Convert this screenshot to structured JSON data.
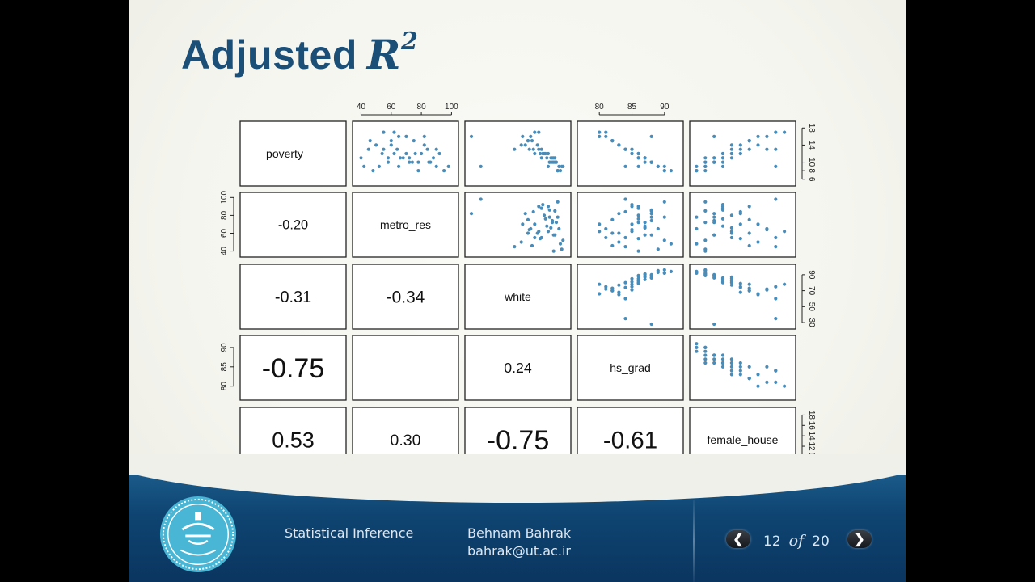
{
  "slide": {
    "title": "Adjusted",
    "title_math": "R",
    "title_exp": "2"
  },
  "chart_data": {
    "type": "scatter-matrix",
    "variables": [
      "poverty",
      "metro_res",
      "white",
      "hs_grad",
      "female_house"
    ],
    "correlations": [
      {
        "row": "metro_res",
        "col": "poverty",
        "value": "-0.20"
      },
      {
        "row": "white",
        "col": "poverty",
        "value": "-0.31"
      },
      {
        "row": "white",
        "col": "metro_res",
        "value": "-0.34"
      },
      {
        "row": "hs_grad",
        "col": "poverty",
        "value": "-0.75"
      },
      {
        "row": "hs_grad",
        "col": "metro_res",
        "value": ""
      },
      {
        "row": "hs_grad",
        "col": "white",
        "value": "0.24"
      },
      {
        "row": "female_house",
        "col": "poverty",
        "value": "0.53"
      },
      {
        "row": "female_house",
        "col": "metro_res",
        "value": "0.30"
      },
      {
        "row": "female_house",
        "col": "white",
        "value": "-0.75"
      },
      {
        "row": "female_house",
        "col": "hs_grad",
        "value": "-0.61"
      }
    ],
    "ticks": {
      "poverty": [
        "6",
        "8",
        "10",
        "14",
        "18"
      ],
      "metro_res": [
        "40",
        "60",
        "80",
        "100"
      ],
      "white": [
        "30",
        "50",
        "70",
        "90"
      ],
      "hs_grad": [
        "80",
        "85",
        "90"
      ],
      "female_house": [
        "8",
        "10",
        "12",
        "14",
        "16",
        "18"
      ]
    },
    "ranges": {
      "poverty": [
        5,
        19
      ],
      "metro_res": [
        36,
        103
      ],
      "white": [
        25,
        100
      ],
      "hs_grad": [
        77,
        92.5
      ],
      "female_house": [
        7.5,
        19
      ]
    },
    "points": [
      [
        9,
        90,
        85,
        86,
        11
      ],
      [
        15,
        60,
        70,
        82,
        14
      ],
      [
        13,
        55,
        80,
        84,
        12
      ],
      [
        11,
        72,
        88,
        86,
        10
      ],
      [
        17,
        62,
        78,
        80,
        18
      ],
      [
        10,
        85,
        90,
        88,
        9
      ],
      [
        12,
        70,
        75,
        85,
        13
      ],
      [
        8,
        95,
        92,
        90,
        9
      ],
      [
        14,
        50,
        65,
        83,
        15
      ],
      [
        16,
        65,
        72,
        81,
        16
      ],
      [
        10,
        78,
        86,
        88,
        10
      ],
      [
        12,
        80,
        82,
        86,
        12
      ],
      [
        9,
        65,
        93,
        89,
        8
      ],
      [
        13,
        45,
        60,
        84,
        17
      ],
      [
        11,
        68,
        84,
        87,
        11
      ],
      [
        15,
        75,
        70,
        82,
        14
      ],
      [
        10,
        58,
        89,
        88,
        10
      ],
      [
        12,
        62,
        85,
        85,
        12
      ],
      [
        9,
        42,
        95,
        89,
        9
      ],
      [
        14,
        82,
        68,
        83,
        13
      ],
      [
        11,
        88,
        80,
        86,
        11
      ],
      [
        17,
        55,
        75,
        81,
        17
      ],
      [
        10,
        72,
        91,
        87,
        9
      ],
      [
        13,
        90,
        78,
        85,
        14
      ],
      [
        8,
        48,
        94,
        91,
        8
      ],
      [
        12,
        76,
        83,
        86,
        11
      ],
      [
        11,
        66,
        87,
        87,
        12
      ],
      [
        16,
        70,
        66,
        80,
        15
      ],
      [
        9,
        52,
        96,
        90,
        9
      ],
      [
        13,
        84,
        74,
        84,
        13
      ],
      [
        10,
        74,
        88,
        88,
        10
      ],
      [
        14,
        60,
        77,
        83,
        12
      ],
      [
        12,
        92,
        81,
        85,
        11
      ],
      [
        11,
        58,
        90,
        87,
        10
      ],
      [
        15,
        46,
        73,
        82,
        14
      ],
      [
        8,
        78,
        92,
        90,
        8
      ],
      [
        13,
        64,
        71,
        85,
        16
      ],
      [
        10,
        86,
        86,
        88,
        11
      ],
      [
        12,
        54,
        79,
        86,
        13
      ],
      [
        9,
        98,
        35,
        84,
        17
      ],
      [
        16,
        82,
        28,
        88,
        10
      ],
      [
        11,
        40,
        89,
        86,
        9
      ]
    ]
  },
  "footer": {
    "course": "Statistical Inference",
    "author": "Behnam Bahrak",
    "email": "bahrak@ut.ac.ir",
    "page_current": "12",
    "page_of": "of",
    "page_total": "20",
    "prev_icon": "chevron-left-icon",
    "next_icon": "chevron-right-icon",
    "logo_icon": "university-of-tehran-logo-icon"
  },
  "colors": {
    "title": "#1c4f78",
    "points": "#4a8cb8",
    "footer": "#0f4572"
  }
}
